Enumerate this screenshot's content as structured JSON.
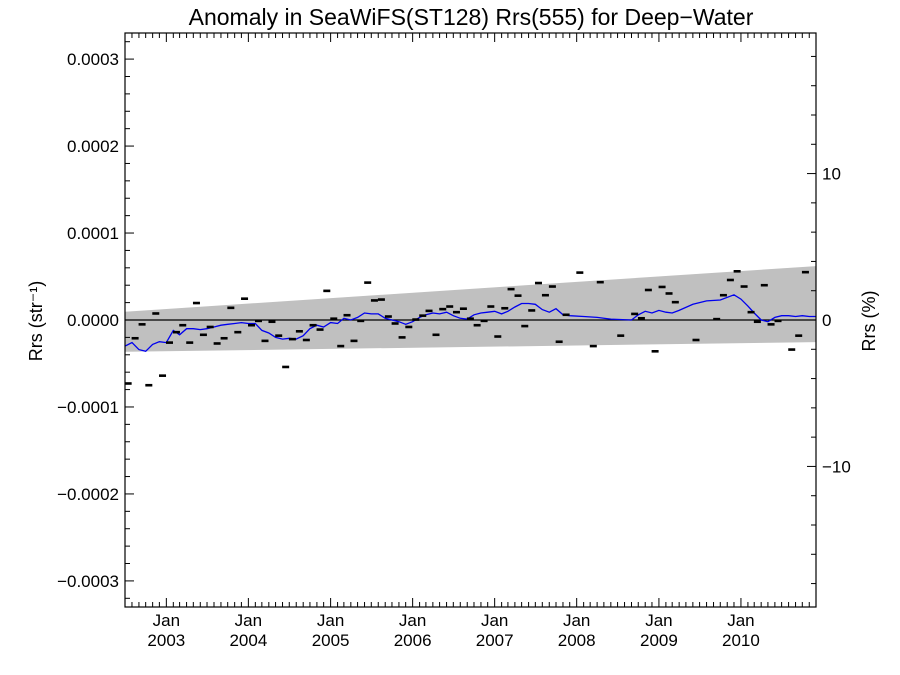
{
  "chart_data": {
    "type": "line",
    "title": "Anomaly in SeaWiFS(ST128) Rrs(555) for Deep−Water",
    "ylabel_left": "Rrs (str⁻¹)",
    "ylabel_right": "Rrs (%)",
    "xlabel": "",
    "xlim": [
      "2002-07-01",
      "2010-12-01"
    ],
    "ylim_left": [
      -0.00033,
      0.00033
    ],
    "ylim_right": [
      -19.6,
      19.6
    ],
    "y_ticks_left": [
      {
        "value": 0.0003,
        "label": "0.0003"
      },
      {
        "value": 0.0002,
        "label": "0.0002"
      },
      {
        "value": 0.0001,
        "label": "0.0001"
      },
      {
        "value": 0.0,
        "label": "0.0000"
      },
      {
        "value": -0.0001,
        "label": "−0.0001"
      },
      {
        "value": -0.0002,
        "label": "−0.0002"
      },
      {
        "value": -0.0003,
        "label": "−0.0003"
      }
    ],
    "y_ticks_right": [
      {
        "value": 10,
        "label": "10"
      },
      {
        "value": 0,
        "label": "0"
      },
      {
        "value": -10,
        "label": "−10"
      }
    ],
    "x_ticks": [
      {
        "date": "2003-01-01",
        "line1": "Jan",
        "line2": "2003"
      },
      {
        "date": "2004-01-01",
        "line1": "Jan",
        "line2": "2004"
      },
      {
        "date": "2005-01-01",
        "line1": "Jan",
        "line2": "2005"
      },
      {
        "date": "2006-01-01",
        "line1": "Jan",
        "line2": "2006"
      },
      {
        "date": "2007-01-01",
        "line1": "Jan",
        "line2": "2007"
      },
      {
        "date": "2008-01-01",
        "line1": "Jan",
        "line2": "2008"
      },
      {
        "date": "2009-01-01",
        "line1": "Jan",
        "line2": "2009"
      },
      {
        "date": "2010-01-01",
        "line1": "Jan",
        "line2": "2010"
      }
    ],
    "band": {
      "color": "#c0c0c0",
      "x": [
        "2002-07-01",
        "2010-12-01"
      ],
      "upper": [
        9.5e-06,
        6.2e-05
      ],
      "lower": [
        -3.65e-05,
        -2.55e-05
      ]
    },
    "zero_line": {
      "y": 0.0,
      "color": "#000000"
    },
    "series": [
      {
        "kind": "points",
        "color": "#000000",
        "marker": "dash",
        "points": [
          [
            "2002-07-15",
            -7.3e-05
          ],
          [
            "2002-08-15",
            -2.1e-05
          ],
          [
            "2002-09-15",
            -5e-06
          ],
          [
            "2002-10-15",
            -7.5e-05
          ],
          [
            "2002-11-15",
            7.5e-06
          ],
          [
            "2002-12-15",
            -6.4e-05
          ],
          [
            "2003-01-15",
            -2.6e-05
          ],
          [
            "2003-02-15",
            -1.4e-05
          ],
          [
            "2003-03-15",
            -6e-06
          ],
          [
            "2003-04-15",
            -2.6e-05
          ],
          [
            "2003-05-15",
            1.95e-05
          ],
          [
            "2003-06-15",
            -1.7e-05
          ],
          [
            "2003-07-15",
            -8e-06
          ],
          [
            "2003-08-15",
            -2.7e-05
          ],
          [
            "2003-09-15",
            -2.1e-05
          ],
          [
            "2003-10-15",
            1.4e-05
          ],
          [
            "2003-11-15",
            -1.4e-05
          ],
          [
            "2003-12-15",
            2.45e-05
          ],
          [
            "2004-01-15",
            -6e-06
          ],
          [
            "2004-02-15",
            -1e-06
          ],
          [
            "2004-03-15",
            -2.4e-05
          ],
          [
            "2004-04-15",
            -2e-06
          ],
          [
            "2004-05-15",
            -1.8e-05
          ],
          [
            "2004-06-15",
            -5.4e-05
          ],
          [
            "2004-07-15",
            -2.2e-05
          ],
          [
            "2004-08-15",
            -1.3e-05
          ],
          [
            "2004-09-15",
            -2.3e-05
          ],
          [
            "2004-10-15",
            -6e-06
          ],
          [
            "2004-11-15",
            -1.1e-05
          ],
          [
            "2004-12-15",
            3.35e-05
          ],
          [
            "2005-01-15",
            1.5e-06
          ],
          [
            "2005-02-15",
            -3e-05
          ],
          [
            "2005-03-15",
            5.5e-06
          ],
          [
            "2005-04-15",
            -2.4e-05
          ],
          [
            "2005-05-15",
            -1e-06
          ],
          [
            "2005-06-15",
            4.3e-05
          ],
          [
            "2005-07-15",
            2.25e-05
          ],
          [
            "2005-08-15",
            2.35e-05
          ],
          [
            "2005-09-15",
            4e-06
          ],
          [
            "2005-10-15",
            -4e-06
          ],
          [
            "2005-11-15",
            -2e-05
          ],
          [
            "2005-12-15",
            -8e-06
          ],
          [
            "2006-01-15",
            5e-07
          ],
          [
            "2006-02-15",
            5e-06
          ],
          [
            "2006-03-15",
            1.05e-05
          ],
          [
            "2006-04-15",
            -1.7e-05
          ],
          [
            "2006-05-15",
            1.25e-05
          ],
          [
            "2006-06-15",
            1.55e-05
          ],
          [
            "2006-07-15",
            9e-06
          ],
          [
            "2006-08-15",
            1.3e-05
          ],
          [
            "2006-09-15",
            1.5e-06
          ],
          [
            "2006-10-15",
            -6e-06
          ],
          [
            "2006-11-15",
            -1e-06
          ],
          [
            "2006-12-15",
            1.55e-05
          ],
          [
            "2007-01-15",
            -1.9e-05
          ],
          [
            "2007-02-15",
            1.35e-05
          ],
          [
            "2007-03-15",
            3.55e-05
          ],
          [
            "2007-04-15",
            2.8e-05
          ],
          [
            "2007-05-15",
            -7e-06
          ],
          [
            "2007-06-15",
            1.1e-05
          ],
          [
            "2007-07-15",
            4.25e-05
          ],
          [
            "2007-08-15",
            2.85e-05
          ],
          [
            "2007-09-15",
            3.85e-05
          ],
          [
            "2007-10-15",
            -2.5e-05
          ],
          [
            "2007-11-15",
            6e-06
          ],
          [
            "2008-01-15",
            5.45e-05
          ],
          [
            "2008-03-15",
            -3e-05
          ],
          [
            "2008-04-15",
            4.35e-05
          ],
          [
            "2008-07-15",
            -1.8e-05
          ],
          [
            "2008-09-15",
            7e-06
          ],
          [
            "2008-10-15",
            2e-06
          ],
          [
            "2008-11-15",
            3.45e-05
          ],
          [
            "2008-12-15",
            -3.6e-05
          ],
          [
            "2009-01-15",
            3.8e-05
          ],
          [
            "2009-02-15",
            3.05e-05
          ],
          [
            "2009-03-15",
            2.05e-05
          ],
          [
            "2009-06-15",
            -2.3e-05
          ],
          [
            "2009-09-15",
            1e-06
          ],
          [
            "2009-10-15",
            2.85e-05
          ],
          [
            "2009-11-15",
            4.6e-05
          ],
          [
            "2009-12-15",
            5.6e-05
          ],
          [
            "2010-01-15",
            3.85e-05
          ],
          [
            "2010-02-15",
            9e-06
          ],
          [
            "2010-03-15",
            -2e-06
          ],
          [
            "2010-04-15",
            4e-05
          ],
          [
            "2010-05-15",
            -5e-06
          ],
          [
            "2010-06-15",
            -1e-06
          ],
          [
            "2010-08-15",
            -3.4e-05
          ],
          [
            "2010-09-15",
            -1.8e-05
          ],
          [
            "2010-10-15",
            5.5e-05
          ]
        ]
      },
      {
        "kind": "line",
        "color": "#0000ee",
        "points": [
          [
            "2002-07-01",
            -3e-05
          ],
          [
            "2002-08-01",
            -2.6e-05
          ],
          [
            "2002-09-01",
            -3.4e-05
          ],
          [
            "2002-10-01",
            -3.6e-05
          ],
          [
            "2002-11-01",
            -2.8e-05
          ],
          [
            "2002-12-01",
            -2.5e-05
          ],
          [
            "2003-01-01",
            -2.6e-05
          ],
          [
            "2003-02-01",
            -1.2e-05
          ],
          [
            "2003-03-01",
            -1.7e-05
          ],
          [
            "2003-04-01",
            -1e-05
          ],
          [
            "2003-05-01",
            -1e-05
          ],
          [
            "2003-06-01",
            -1.1e-05
          ],
          [
            "2003-07-01",
            -1e-05
          ],
          [
            "2003-08-01",
            -8e-06
          ],
          [
            "2003-09-01",
            -6e-06
          ],
          [
            "2003-10-01",
            -5e-06
          ],
          [
            "2003-11-01",
            -4e-06
          ],
          [
            "2003-12-01",
            -3e-06
          ],
          [
            "2004-01-01",
            -4e-06
          ],
          [
            "2004-02-01",
            -4e-06
          ],
          [
            "2004-03-01",
            -1.2e-05
          ],
          [
            "2004-04-01",
            -1.5e-05
          ],
          [
            "2004-05-01",
            -2e-05
          ],
          [
            "2004-06-01",
            -2.2e-05
          ],
          [
            "2004-07-01",
            -2.1e-05
          ],
          [
            "2004-08-01",
            -2.2e-05
          ],
          [
            "2004-09-01",
            -1.8e-05
          ],
          [
            "2004-10-01",
            -1e-05
          ],
          [
            "2004-11-01",
            -6e-06
          ],
          [
            "2004-12-01",
            -8e-06
          ],
          [
            "2005-01-01",
            -3e-06
          ],
          [
            "2005-02-01",
            -4e-06
          ],
          [
            "2005-03-01",
            2e-06
          ],
          [
            "2005-04-01",
            0.0
          ],
          [
            "2005-05-01",
            3e-06
          ],
          [
            "2005-06-01",
            8e-06
          ],
          [
            "2005-07-01",
            7e-06
          ],
          [
            "2005-08-01",
            7e-06
          ],
          [
            "2005-09-01",
            2e-06
          ],
          [
            "2005-10-01",
            0.0
          ],
          [
            "2005-11-01",
            -2e-06
          ],
          [
            "2005-12-01",
            -5e-06
          ],
          [
            "2006-01-01",
            -2e-06
          ],
          [
            "2006-02-01",
            3e-06
          ],
          [
            "2006-03-01",
            6e-06
          ],
          [
            "2006-04-01",
            8e-06
          ],
          [
            "2006-05-01",
            7e-06
          ],
          [
            "2006-06-01",
            9e-06
          ],
          [
            "2006-07-01",
            5e-06
          ],
          [
            "2006-08-01",
            2e-06
          ],
          [
            "2006-09-01",
            1e-06
          ],
          [
            "2006-10-01",
            6e-06
          ],
          [
            "2006-11-01",
            8e-06
          ],
          [
            "2006-12-01",
            9e-06
          ],
          [
            "2007-01-01",
            1e-05
          ],
          [
            "2007-02-01",
            7e-06
          ],
          [
            "2007-03-01",
            1e-05
          ],
          [
            "2007-04-01",
            1.5e-05
          ],
          [
            "2007-05-01",
            1.9e-05
          ],
          [
            "2007-06-01",
            1.9e-05
          ],
          [
            "2007-07-01",
            1.8e-05
          ],
          [
            "2007-08-01",
            1.2e-05
          ],
          [
            "2007-09-01",
            9e-06
          ],
          [
            "2007-10-01",
            1.3e-05
          ],
          [
            "2007-11-01",
            6e-06
          ],
          [
            "2007-12-01",
            5e-06
          ],
          [
            "2008-02-01",
            4e-06
          ],
          [
            "2008-04-01",
            3e-06
          ],
          [
            "2008-06-01",
            1e-06
          ],
          [
            "2008-09-01",
            0.0
          ],
          [
            "2008-10-01",
            6e-06
          ],
          [
            "2008-11-01",
            1e-05
          ],
          [
            "2008-12-01",
            8e-06
          ],
          [
            "2009-01-01",
            1.1e-05
          ],
          [
            "2009-02-01",
            9e-06
          ],
          [
            "2009-03-01",
            8e-06
          ],
          [
            "2009-04-01",
            1.1e-05
          ],
          [
            "2009-06-01",
            1.8e-05
          ],
          [
            "2009-08-01",
            2.2e-05
          ],
          [
            "2009-10-01",
            2.3e-05
          ],
          [
            "2009-12-01",
            2.9e-05
          ],
          [
            "2010-01-01",
            2.4e-05
          ],
          [
            "2010-02-01",
            1.6e-05
          ],
          [
            "2010-03-01",
            8e-06
          ],
          [
            "2010-04-01",
            0.0
          ],
          [
            "2010-05-01",
            -2e-06
          ],
          [
            "2010-06-01",
            3e-06
          ],
          [
            "2010-07-01",
            5e-06
          ],
          [
            "2010-08-01",
            5e-06
          ],
          [
            "2010-09-01",
            4e-06
          ],
          [
            "2010-10-01",
            5e-06
          ],
          [
            "2010-11-01",
            4e-06
          ],
          [
            "2010-12-01",
            4e-06
          ]
        ]
      }
    ]
  }
}
